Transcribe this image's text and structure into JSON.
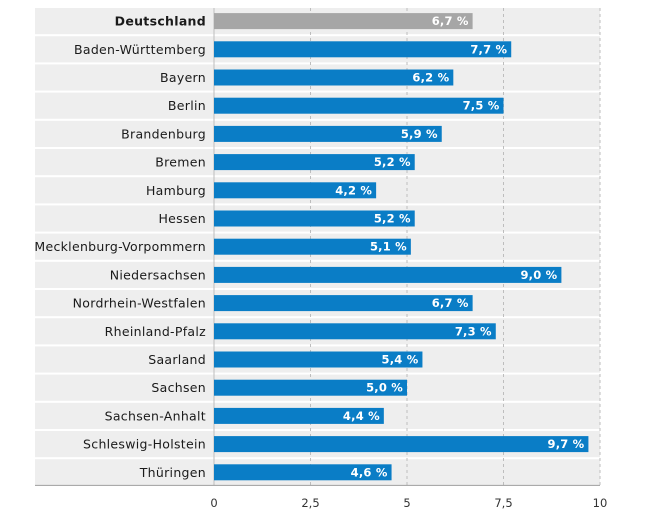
{
  "chart_data": {
    "type": "bar",
    "orientation": "horizontal",
    "categories": [
      "Deutschland",
      "Baden-Württemberg",
      "Bayern",
      "Berlin",
      "Brandenburg",
      "Bremen",
      "Hamburg",
      "Hessen",
      "Mecklenburg-Vorpommern",
      "Niedersachsen",
      "Nordrhein-Westfalen",
      "Rheinland-Pfalz",
      "Saarland",
      "Sachsen",
      "Sachsen-Anhalt",
      "Schleswig-Holstein",
      "Thüringen"
    ],
    "values": [
      6.7,
      7.7,
      6.2,
      7.5,
      5.9,
      5.2,
      4.2,
      5.2,
      5.1,
      9.0,
      6.7,
      7.3,
      5.4,
      5.0,
      4.4,
      9.7,
      4.6
    ],
    "value_labels": [
      "6,7 %",
      "7,7 %",
      "6,2 %",
      "7,5 %",
      "5,9 %",
      "5,2 %",
      "4,2 %",
      "5,2 %",
      "5,1 %",
      "9,0 %",
      "6,7 %",
      "7,3 %",
      "5,4 %",
      "5,0 %",
      "4,4 %",
      "9,7 %",
      "4,6 %"
    ],
    "highlight_index": 0,
    "xlim": [
      0,
      10
    ],
    "x_ticks": [
      0,
      2.5,
      5,
      7.5,
      10
    ],
    "x_tick_labels": [
      "0",
      "2,5",
      "5",
      "7,5",
      "10"
    ],
    "grid": true,
    "colors": {
      "bar": "#0a7dc6",
      "highlight_bar": "#a6a6a6",
      "row_band": "#eeeeee",
      "grid": "#bdbdbd",
      "text": "#1a1a1a"
    }
  }
}
